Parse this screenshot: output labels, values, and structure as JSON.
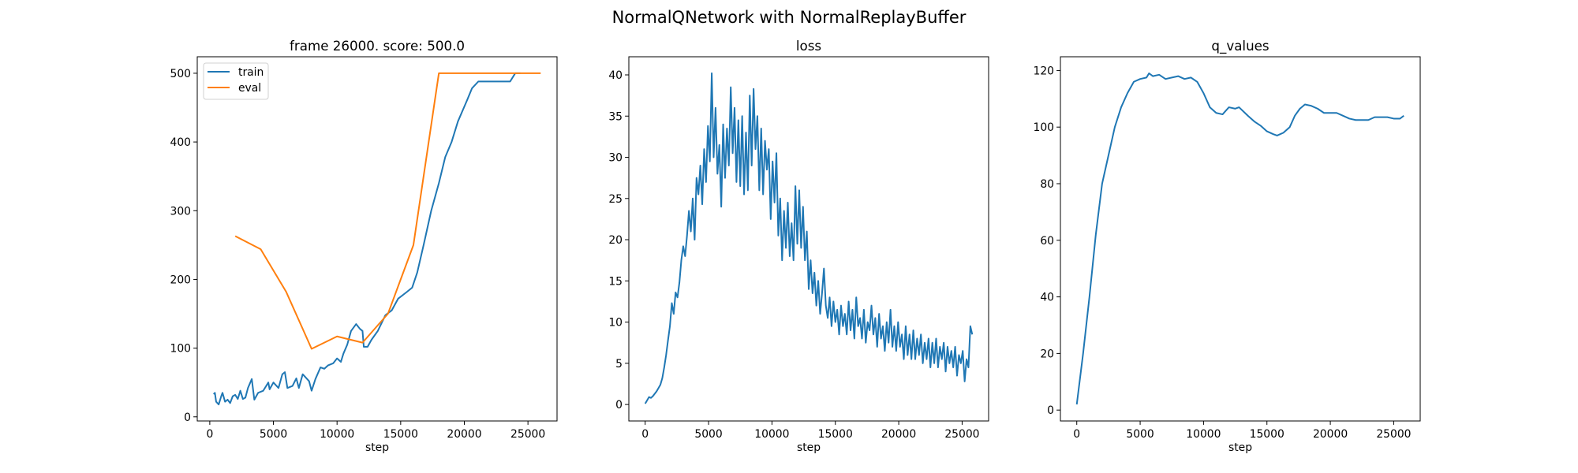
{
  "suptitle": "NormalQNetwork with NormalReplayBuffer",
  "chart_data": [
    {
      "type": "line",
      "title": "frame 26000. score: 500.0",
      "xlabel": "step",
      "ylabel": "",
      "xlim": [
        -985,
        27285
      ],
      "ylim": [
        -6,
        524
      ],
      "xticks": [
        0,
        5000,
        10000,
        15000,
        20000,
        25000
      ],
      "xtick_labels": [
        "0",
        "5000",
        "10000",
        "15000",
        "20000",
        "25000"
      ],
      "yticks": [
        0,
        100,
        200,
        300,
        400,
        500
      ],
      "ytick_labels": [
        "0",
        "100",
        "200",
        "300",
        "400",
        "500"
      ],
      "grid": false,
      "legend": "top-left",
      "series": [
        {
          "name": "train",
          "color": "#1f77b4",
          "x": [
            300,
            400,
            500,
            700,
            900,
            1000,
            1200,
            1400,
            1600,
            1800,
            2000,
            2200,
            2400,
            2600,
            2800,
            3000,
            3300,
            3500,
            3800,
            4200,
            4600,
            4700,
            5000,
            5400,
            5700,
            5900,
            6100,
            6500,
            6800,
            7000,
            7300,
            7500,
            7800,
            8000,
            8300,
            8700,
            9000,
            9300,
            9700,
            10000,
            10300,
            10500,
            10800,
            11100,
            11500,
            11800,
            12000,
            12100,
            12400,
            12700,
            13200,
            13800,
            14300,
            14800,
            15500,
            15900,
            16300,
            16800,
            17400,
            18000,
            18500,
            19000,
            19500,
            20200,
            20600,
            21100,
            23600,
            24000,
            24400
          ],
          "y": [
            33,
            35,
            22,
            18,
            30,
            35,
            22,
            25,
            20,
            30,
            32,
            26,
            38,
            26,
            28,
            42,
            55,
            25,
            35,
            38,
            50,
            40,
            50,
            42,
            62,
            65,
            42,
            45,
            56,
            42,
            62,
            58,
            52,
            38,
            55,
            72,
            70,
            75,
            78,
            85,
            80,
            92,
            105,
            125,
            135,
            128,
            125,
            102,
            102,
            112,
            125,
            148,
            155,
            172,
            182,
            188,
            210,
            250,
            300,
            340,
            378,
            400,
            430,
            460,
            478,
            488,
            488,
            500,
            500
          ]
        },
        {
          "name": "eval",
          "color": "#ff7f0e",
          "x": [
            2000,
            4000,
            6000,
            8000,
            10000,
            12000,
            14000,
            16000,
            18000,
            20000,
            22000,
            24000,
            26000
          ],
          "y": [
            263,
            244,
            182,
            99,
            117,
            108,
            150,
            250,
            500,
            500,
            500,
            500,
            500
          ]
        }
      ]
    },
    {
      "type": "line",
      "title": "loss",
      "xlabel": "step",
      "ylabel": "",
      "xlim": [
        -1290,
        27090
      ],
      "ylim": [
        -2,
        42.2
      ],
      "xticks": [
        0,
        5000,
        10000,
        15000,
        20000,
        25000
      ],
      "xtick_labels": [
        "0",
        "5000",
        "10000",
        "15000",
        "20000",
        "25000"
      ],
      "yticks": [
        0,
        5,
        10,
        15,
        20,
        25,
        30,
        35,
        40
      ],
      "ytick_labels": [
        "0",
        "5",
        "10",
        "15",
        "20",
        "25",
        "30",
        "35",
        "40"
      ],
      "grid": false,
      "series": [
        {
          "color": "#1f77b4",
          "x_start": 0,
          "x_step": 150,
          "y": [
            0.1,
            0.5,
            0.9,
            0.8,
            1.0,
            1.3,
            1.6,
            2.0,
            2.4,
            3.2,
            4.5,
            6.0,
            7.8,
            9.5,
            12.3,
            11.0,
            13.6,
            13.0,
            14.8,
            17.5,
            19.2,
            18.0,
            20.5,
            23.5,
            21.0,
            25.0,
            20.0,
            27.5,
            25.5,
            29.0,
            24.3,
            31.0,
            27.0,
            33.8,
            29.5,
            40.2,
            30.0,
            36.0,
            28.0,
            31.5,
            24.0,
            34.0,
            27.5,
            33.5,
            29.0,
            38.5,
            30.5,
            36.0,
            27.0,
            34.5,
            26.5,
            35.0,
            25.5,
            33.0,
            26.0,
            37.5,
            29.0,
            38.3,
            31.0,
            35.0,
            26.0,
            33.5,
            25.5,
            32.0,
            28.5,
            31.0,
            22.5,
            29.5,
            24.5,
            30.5,
            20.5,
            25.0,
            17.5,
            23.5,
            19.0,
            24.5,
            18.0,
            22.0,
            17.5,
            26.5,
            19.5,
            26.0,
            19.0,
            24.0,
            17.5,
            21.0,
            14.0,
            17.5,
            13.5,
            16.0,
            12.0,
            15.0,
            11.0,
            13.5,
            16.5,
            12.0,
            10.5,
            13.0,
            9.5,
            12.5,
            10.0,
            11.5,
            8.5,
            12.0,
            9.5,
            11.0,
            8.5,
            12.5,
            9.0,
            11.5,
            8.0,
            13.0,
            9.5,
            10.5,
            8.0,
            11.5,
            7.5,
            10.0,
            9.0,
            12.0,
            8.5,
            10.5,
            7.0,
            11.0,
            8.0,
            9.5,
            6.5,
            10.0,
            7.5,
            11.5,
            7.0,
            9.5,
            6.5,
            10.0,
            7.0,
            8.5,
            5.5,
            9.5,
            6.0,
            8.5,
            5.5,
            9.0,
            5.5,
            8.0,
            6.0,
            8.5,
            5.0,
            7.5,
            5.5,
            8.0,
            4.5,
            7.5,
            5.0,
            8.0,
            4.5,
            7.0,
            5.5,
            7.5,
            4.0,
            7.0,
            5.0,
            6.5,
            4.5,
            7.0,
            3.5,
            6.0,
            5.0,
            6.5,
            2.8,
            5.5,
            4.5,
            9.5,
            8.5
          ]
        }
      ]
    },
    {
      "type": "line",
      "title": "q_values",
      "xlabel": "step",
      "ylabel": "",
      "xlim": [
        -1290,
        27090
      ],
      "ylim": [
        -3.85,
        124.85
      ],
      "xticks": [
        0,
        5000,
        10000,
        15000,
        20000,
        25000
      ],
      "xtick_labels": [
        "0",
        "5000",
        "10000",
        "15000",
        "20000",
        "25000"
      ],
      "yticks": [
        0,
        20,
        40,
        60,
        80,
        100,
        120
      ],
      "ytick_labels": [
        "0",
        "20",
        "40",
        "60",
        "80",
        "100",
        "120"
      ],
      "grid": false,
      "series": [
        {
          "color": "#1f77b4",
          "x": [
            0,
            500,
            1000,
            1500,
            2000,
            2500,
            3000,
            3500,
            4000,
            4500,
            5000,
            5500,
            5700,
            6000,
            6500,
            7000,
            7500,
            8000,
            8500,
            9000,
            9500,
            10000,
            10500,
            11000,
            11500,
            12000,
            12500,
            12800,
            13500,
            14000,
            14500,
            15000,
            15500,
            15800,
            16300,
            16800,
            17200,
            17600,
            18000,
            18500,
            19000,
            19500,
            20000,
            20500,
            21000,
            21500,
            22000,
            22500,
            23000,
            23500,
            24000,
            24500,
            25000,
            25500,
            25800
          ],
          "y": [
            2,
            20,
            40,
            62,
            80,
            90,
            100,
            107,
            112,
            116,
            117,
            117.5,
            119,
            118,
            118.5,
            117,
            117.5,
            118,
            117,
            117.5,
            116,
            112,
            107,
            105,
            104.5,
            107,
            106.5,
            107,
            104,
            102,
            100.5,
            98.5,
            97.5,
            97,
            98,
            100,
            104,
            106.5,
            108,
            107.5,
            106.5,
            105,
            105,
            105,
            104,
            103,
            102.5,
            102.5,
            102.5,
            103.5,
            103.5,
            103.5,
            103,
            103,
            104
          ]
        }
      ]
    }
  ]
}
